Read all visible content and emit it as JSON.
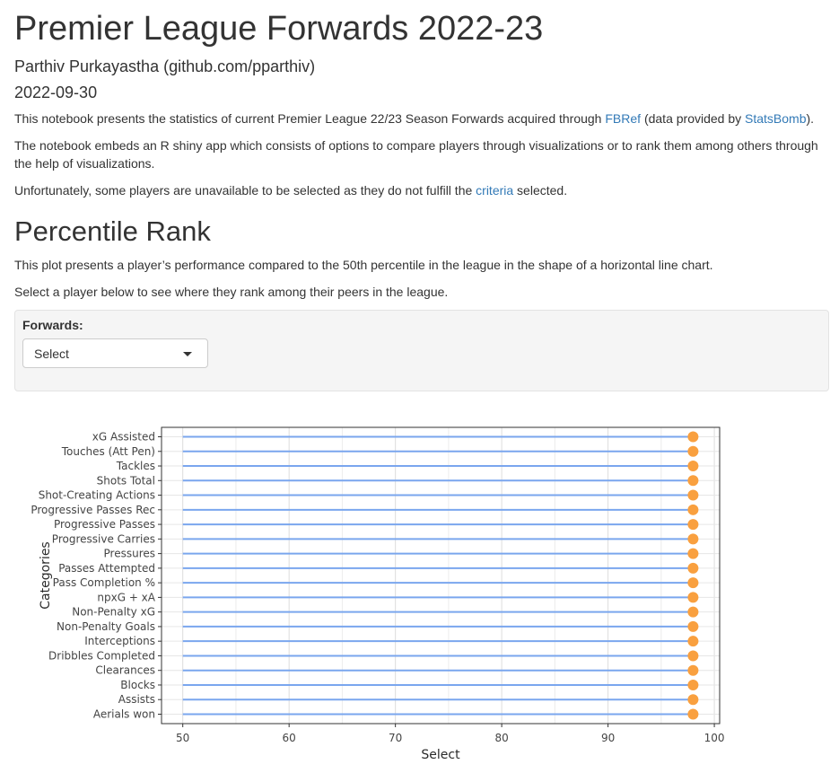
{
  "header": {
    "title": "Premier League Forwards 2022-23",
    "author": "Parthiv Purkayastha (github.com/pparthiv)",
    "date": "2022-09-30"
  },
  "intro": {
    "p1_before": "This notebook presents the statistics of current Premier League 22/23 Season Forwards acquired through ",
    "p1_link1": "FBRef",
    "p1_middle": " (data provided by ",
    "p1_link2": "StatsBomb",
    "p1_after": ").",
    "p2": "The notebook embeds an R shiny app which consists of options to compare players through visualizations or to rank them among others through the help of visualizations.",
    "p3_before": "Unfortunately, some players are unavailable to be selected as they do not fulfill the ",
    "p3_link": "criteria",
    "p3_after": " selected."
  },
  "section": {
    "title": "Percentile Rank",
    "p1": "This plot presents a player’s performance compared to the 50th percentile in the league in the shape of a horizontal line chart.",
    "p2": "Select a player below to see where they rank among their peers in the league."
  },
  "selector": {
    "label": "Forwards:",
    "value": "Select"
  },
  "chart_data": {
    "type": "lollipop",
    "orientation": "horizontal",
    "baseline": 50,
    "categories": [
      "xG Assisted",
      "Touches (Att Pen)",
      "Tackles",
      "Shots Total",
      "Shot-Creating Actions",
      "Progressive Passes Rec",
      "Progressive Passes",
      "Progressive Carries",
      "Pressures",
      "Passes Attempted",
      "Pass Completion %",
      "npxG + xA",
      "Non-Penalty xG",
      "Non-Penalty Goals",
      "Interceptions",
      "Dribbles Completed",
      "Clearances",
      "Blocks",
      "Assists",
      "Aerials won"
    ],
    "values": [
      98,
      98,
      98,
      98,
      98,
      98,
      98,
      98,
      98,
      98,
      98,
      98,
      98,
      98,
      98,
      98,
      98,
      98,
      98,
      98
    ],
    "xlim": [
      48,
      100.5
    ],
    "xticks": [
      "50",
      "60",
      "70",
      "80",
      "90",
      "100"
    ],
    "xlabel": "Select",
    "ylabel": "Categories",
    "line_color": "#7aa6ee",
    "point_color": "#f9a03f",
    "grid": true
  }
}
